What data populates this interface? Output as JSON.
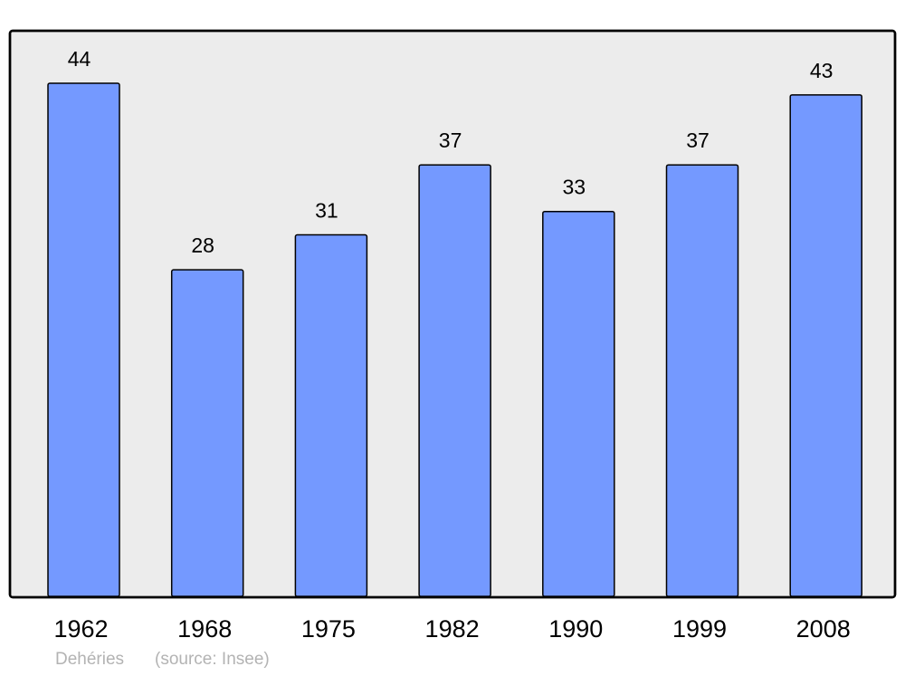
{
  "chart_data": {
    "type": "bar",
    "categories": [
      "1962",
      "1968",
      "1975",
      "1982",
      "1990",
      "1999",
      "2008"
    ],
    "values": [
      44,
      28,
      31,
      37,
      33,
      37,
      43
    ],
    "title": "",
    "xlabel": "",
    "ylabel": "",
    "ylim": [
      0,
      48.5
    ],
    "grid": false,
    "bar_color": "#7499ff",
    "background_color": "#ececec"
  },
  "footer": {
    "place": "Dehéries",
    "source": "(source: Insee)"
  }
}
